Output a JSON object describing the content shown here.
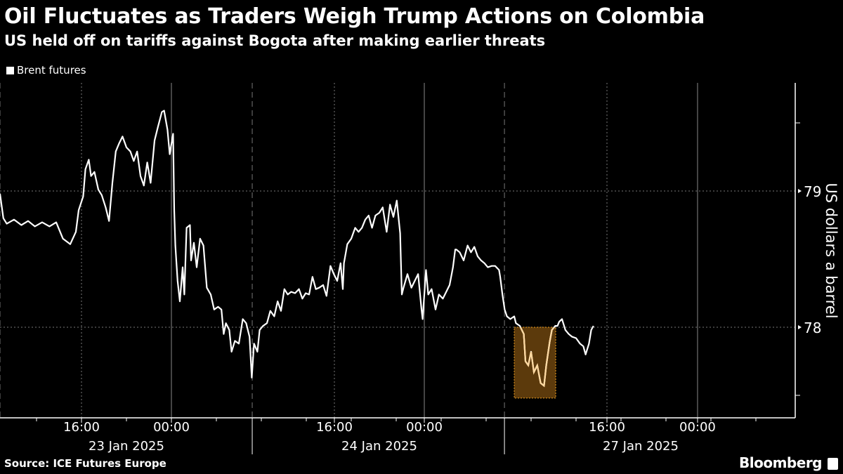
{
  "title": "Oil Fluctuates as Traders Weigh Trump Actions on Colombia",
  "subtitle": "US held off on tariffs against Bogota after making earlier threats",
  "source": "Source: ICE Futures Europe",
  "brand": "Bloomberg",
  "colors": {
    "line": "#ffffff",
    "highlight_fill": "#5c3a0c",
    "highlight_border": "#f0a020",
    "highlight_line": "#ffd9a0"
  },
  "chart_data": {
    "type": "line",
    "title": "Oil Fluctuates as Traders Weigh Trump Actions on Colombia",
    "xlabel": "",
    "ylabel": "US dollars a barrel",
    "ylim": [
      77.48,
      79.72
    ],
    "x_units": "trading hours from chart start (compressed axis)",
    "legend": [
      {
        "name": "Brent futures",
        "position": "top-left"
      }
    ],
    "y_ticks": [
      {
        "value": 79,
        "label": "79"
      },
      {
        "value": 78,
        "label": "78"
      }
    ],
    "y_minor_ticks": [
      79.5,
      77.5
    ],
    "x_ticks": [
      {
        "x": 7.25,
        "label": "16:00"
      },
      {
        "x": 15.25,
        "label": "00:00"
      },
      {
        "x": 29.75,
        "label": "16:00"
      },
      {
        "x": 37.75,
        "label": "00:00"
      },
      {
        "x": 54,
        "label": "16:00"
      },
      {
        "x": 62.06,
        "label": "00:00"
      }
    ],
    "x_date_labels": [
      {
        "x": 11.25,
        "label": "23 Jan 2025"
      },
      {
        "x": 33.75,
        "label": "24 Jan 2025"
      },
      {
        "x": 57,
        "label": "27 Jan 2025"
      }
    ],
    "session_breaks": [
      22.44,
      44.88
    ],
    "highlight": {
      "x_start": 45.75,
      "x_end": 49.44,
      "y_top": 78.0,
      "y_bottom": 77.48
    },
    "series": [
      {
        "name": "Brent futures",
        "points": [
          [
            0,
            78.98
          ],
          [
            0.3,
            78.8
          ],
          [
            0.6,
            78.76
          ],
          [
            1.25,
            78.79
          ],
          [
            1.9,
            78.75
          ],
          [
            2.5,
            78.78
          ],
          [
            3.1,
            78.74
          ],
          [
            3.75,
            78.77
          ],
          [
            4.4,
            78.74
          ],
          [
            5,
            78.77
          ],
          [
            5.6,
            78.65
          ],
          [
            6.25,
            78.61
          ],
          [
            6.75,
            78.7
          ],
          [
            7,
            78.86
          ],
          [
            7.4,
            78.96
          ],
          [
            7.6,
            79.16
          ],
          [
            7.9,
            79.23
          ],
          [
            8.1,
            79.11
          ],
          [
            8.4,
            79.14
          ],
          [
            8.75,
            79.01
          ],
          [
            9.05,
            78.97
          ],
          [
            9.4,
            78.88
          ],
          [
            9.7,
            78.78
          ],
          [
            10,
            79.06
          ],
          [
            10.3,
            79.29
          ],
          [
            10.6,
            79.35
          ],
          [
            10.9,
            79.4
          ],
          [
            11.25,
            79.32
          ],
          [
            11.6,
            79.29
          ],
          [
            11.9,
            79.22
          ],
          [
            12.2,
            79.29
          ],
          [
            12.5,
            79.11
          ],
          [
            12.8,
            79.04
          ],
          [
            13.1,
            79.21
          ],
          [
            13.4,
            79.06
          ],
          [
            13.75,
            79.37
          ],
          [
            14.05,
            79.47
          ],
          [
            14.4,
            79.58
          ],
          [
            14.6,
            79.59
          ],
          [
            14.9,
            79.45
          ],
          [
            15.1,
            79.27
          ],
          [
            15.4,
            79.42
          ],
          [
            15.5,
            78.86
          ],
          [
            15.6,
            78.6
          ],
          [
            15.8,
            78.34
          ],
          [
            16,
            78.19
          ],
          [
            16.25,
            78.44
          ],
          [
            16.4,
            78.24
          ],
          [
            16.6,
            78.73
          ],
          [
            16.9,
            78.75
          ],
          [
            17,
            78.49
          ],
          [
            17.25,
            78.62
          ],
          [
            17.5,
            78.44
          ],
          [
            17.8,
            78.65
          ],
          [
            18.1,
            78.6
          ],
          [
            18.4,
            78.29
          ],
          [
            18.75,
            78.24
          ],
          [
            19.05,
            78.13
          ],
          [
            19.4,
            78.15
          ],
          [
            19.7,
            78.13
          ],
          [
            19.9,
            77.95
          ],
          [
            20.1,
            78.03
          ],
          [
            20.4,
            77.98
          ],
          [
            20.6,
            77.82
          ],
          [
            20.9,
            77.9
          ],
          [
            21.25,
            77.88
          ],
          [
            21.6,
            78.06
          ],
          [
            21.9,
            78.03
          ],
          [
            22.2,
            77.93
          ],
          [
            22.4,
            77.63
          ],
          [
            22.6,
            77.88
          ],
          [
            22.9,
            77.82
          ],
          [
            23.1,
            77.98
          ],
          [
            23.4,
            78.01
          ],
          [
            23.75,
            78.03
          ],
          [
            24.05,
            78.12
          ],
          [
            24.4,
            78.08
          ],
          [
            24.7,
            78.19
          ],
          [
            25,
            78.12
          ],
          [
            25.3,
            78.28
          ],
          [
            25.6,
            78.24
          ],
          [
            25.9,
            78.26
          ],
          [
            26.25,
            78.25
          ],
          [
            26.6,
            78.28
          ],
          [
            26.9,
            78.21
          ],
          [
            27.2,
            78.25
          ],
          [
            27.5,
            78.24
          ],
          [
            27.8,
            78.37
          ],
          [
            28.1,
            78.28
          ],
          [
            28.4,
            78.29
          ],
          [
            28.75,
            78.31
          ],
          [
            29.05,
            78.23
          ],
          [
            29.4,
            78.45
          ],
          [
            29.7,
            78.39
          ],
          [
            30,
            78.34
          ],
          [
            30.3,
            78.47
          ],
          [
            30.5,
            78.28
          ],
          [
            30.6,
            78.47
          ],
          [
            30.9,
            78.61
          ],
          [
            31.25,
            78.65
          ],
          [
            31.6,
            78.73
          ],
          [
            31.9,
            78.7
          ],
          [
            32.2,
            78.73
          ],
          [
            32.5,
            78.79
          ],
          [
            32.8,
            78.82
          ],
          [
            33.1,
            78.73
          ],
          [
            33.4,
            78.82
          ],
          [
            33.75,
            78.84
          ],
          [
            34.05,
            78.88
          ],
          [
            34.4,
            78.7
          ],
          [
            34.7,
            78.9
          ],
          [
            35,
            78.81
          ],
          [
            35.3,
            78.93
          ],
          [
            35.6,
            78.69
          ],
          [
            35.75,
            78.24
          ],
          [
            35.9,
            78.29
          ],
          [
            36.25,
            78.39
          ],
          [
            36.6,
            78.29
          ],
          [
            36.9,
            78.34
          ],
          [
            37.2,
            78.39
          ],
          [
            37.5,
            78.13
          ],
          [
            37.6,
            78.06
          ],
          [
            37.9,
            78.42
          ],
          [
            38.1,
            78.24
          ],
          [
            38.4,
            78.28
          ],
          [
            38.75,
            78.13
          ],
          [
            39.05,
            78.24
          ],
          [
            39.4,
            78.21
          ],
          [
            39.7,
            78.26
          ],
          [
            40,
            78.31
          ],
          [
            40.3,
            78.44
          ],
          [
            40.5,
            78.57
          ],
          [
            40.6,
            78.57
          ],
          [
            40.9,
            78.55
          ],
          [
            41.25,
            78.49
          ],
          [
            41.6,
            78.6
          ],
          [
            41.9,
            78.55
          ],
          [
            42.2,
            78.59
          ],
          [
            42.5,
            78.52
          ],
          [
            42.8,
            78.49
          ],
          [
            43.1,
            78.47
          ],
          [
            43.4,
            78.44
          ],
          [
            43.75,
            78.45
          ],
          [
            44.05,
            78.45
          ],
          [
            44.4,
            78.42
          ],
          [
            44.5,
            78.37
          ],
          [
            44.7,
            78.24
          ],
          [
            44.9,
            78.13
          ],
          [
            45.1,
            78.08
          ],
          [
            45.4,
            78.06
          ],
          [
            45.75,
            78.08
          ],
          [
            45.9,
            78.03
          ],
          [
            46.25,
            78.01
          ],
          [
            46.6,
            77.95
          ],
          [
            46.75,
            77.75
          ],
          [
            47,
            77.72
          ],
          [
            47.25,
            77.82
          ],
          [
            47.5,
            77.67
          ],
          [
            47.8,
            77.72
          ],
          [
            48.1,
            77.59
          ],
          [
            48.4,
            77.57
          ],
          [
            48.6,
            77.72
          ],
          [
            48.9,
            77.89
          ],
          [
            49.1,
            77.98
          ],
          [
            49.4,
            78.01
          ],
          [
            49.6,
            78.01
          ],
          [
            49.75,
            78.04
          ],
          [
            50,
            78.06
          ],
          [
            50.3,
            77.98
          ],
          [
            50.6,
            77.95
          ],
          [
            50.9,
            77.93
          ],
          [
            51.25,
            77.92
          ],
          [
            51.6,
            77.88
          ],
          [
            51.9,
            77.86
          ],
          [
            52.1,
            77.8
          ],
          [
            52.4,
            77.88
          ],
          [
            52.6,
            77.98
          ],
          [
            52.8,
            78.01
          ]
        ]
      }
    ]
  }
}
